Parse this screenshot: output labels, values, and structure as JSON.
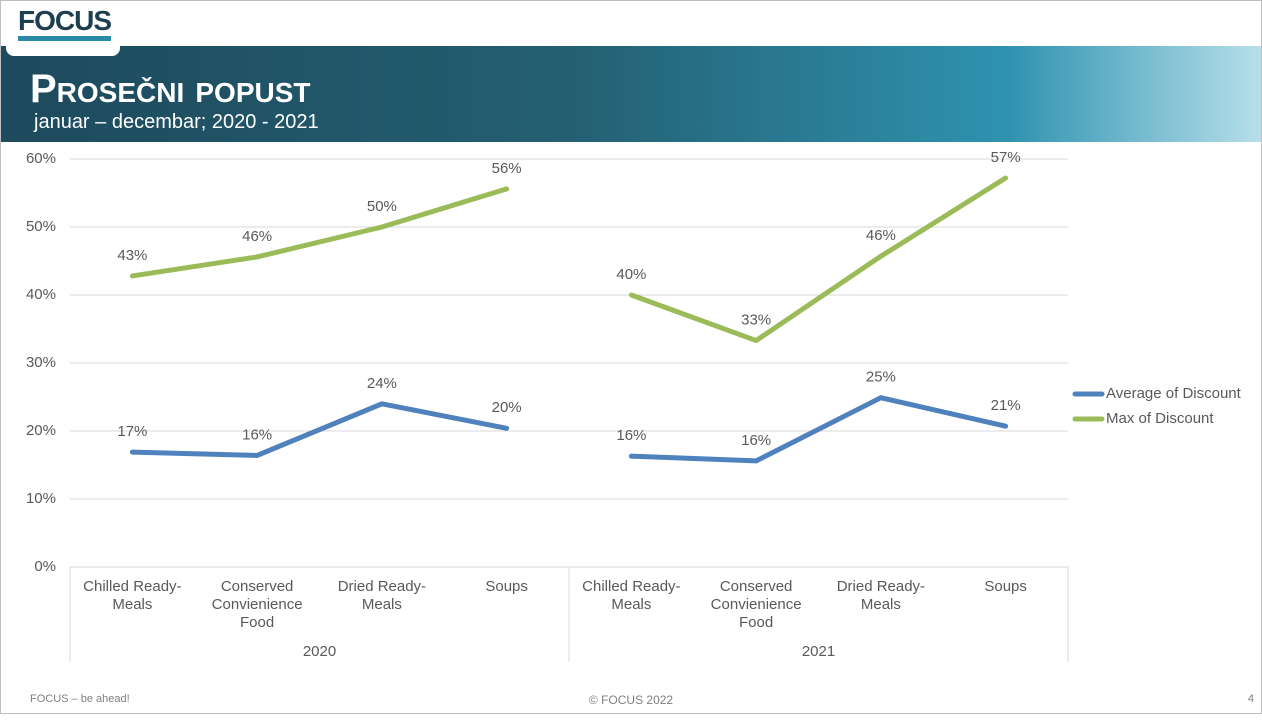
{
  "header": {
    "logo": "FOCUS",
    "title": "Prosečni popust",
    "subtitle": "januar – decembar; 2020 - 2021"
  },
  "chart_data": {
    "type": "line",
    "categories": [
      "Chilled Ready-Meals",
      "Conserved Convienience Food",
      "Dried Ready-Meals",
      "Soups",
      "Chilled Ready-Meals",
      "Conserved Convienience Food",
      "Dried Ready-Meals",
      "Soups"
    ],
    "groups": [
      "2020",
      "2021"
    ],
    "series": [
      {
        "name": "Average of Discount",
        "color": "#4f81bd",
        "values": [
          16.9,
          16.4,
          24,
          20.4,
          16.3,
          15.6,
          24.9,
          20.7
        ],
        "value_labels": [
          "17%",
          "16%",
          "24%",
          "20%",
          "16%",
          "16%",
          "25%",
          "21%"
        ]
      },
      {
        "name": "Max of Discount",
        "color": "#9bbb59",
        "values": [
          42.8,
          45.6,
          50,
          55.6,
          40,
          33.3,
          45.7,
          57.2
        ],
        "value_labels": [
          "43%",
          "46%",
          "50%",
          "56%",
          "40%",
          "33%",
          "46%",
          "57%"
        ]
      }
    ],
    "ylim": [
      0,
      60
    ],
    "yticks": [
      {
        "value": 0,
        "label": "0%"
      },
      {
        "value": 10,
        "label": "10%"
      },
      {
        "value": 20,
        "label": "20%"
      },
      {
        "value": 30,
        "label": "30%"
      },
      {
        "value": 40,
        "label": "40%"
      },
      {
        "value": 50,
        "label": "50%"
      },
      {
        "value": 60,
        "label": "60%"
      }
    ],
    "grid": true,
    "legend": "right"
  },
  "footer": {
    "left": "FOCUS – be ahead!",
    "center": "© FOCUS 2022",
    "page": "4"
  }
}
